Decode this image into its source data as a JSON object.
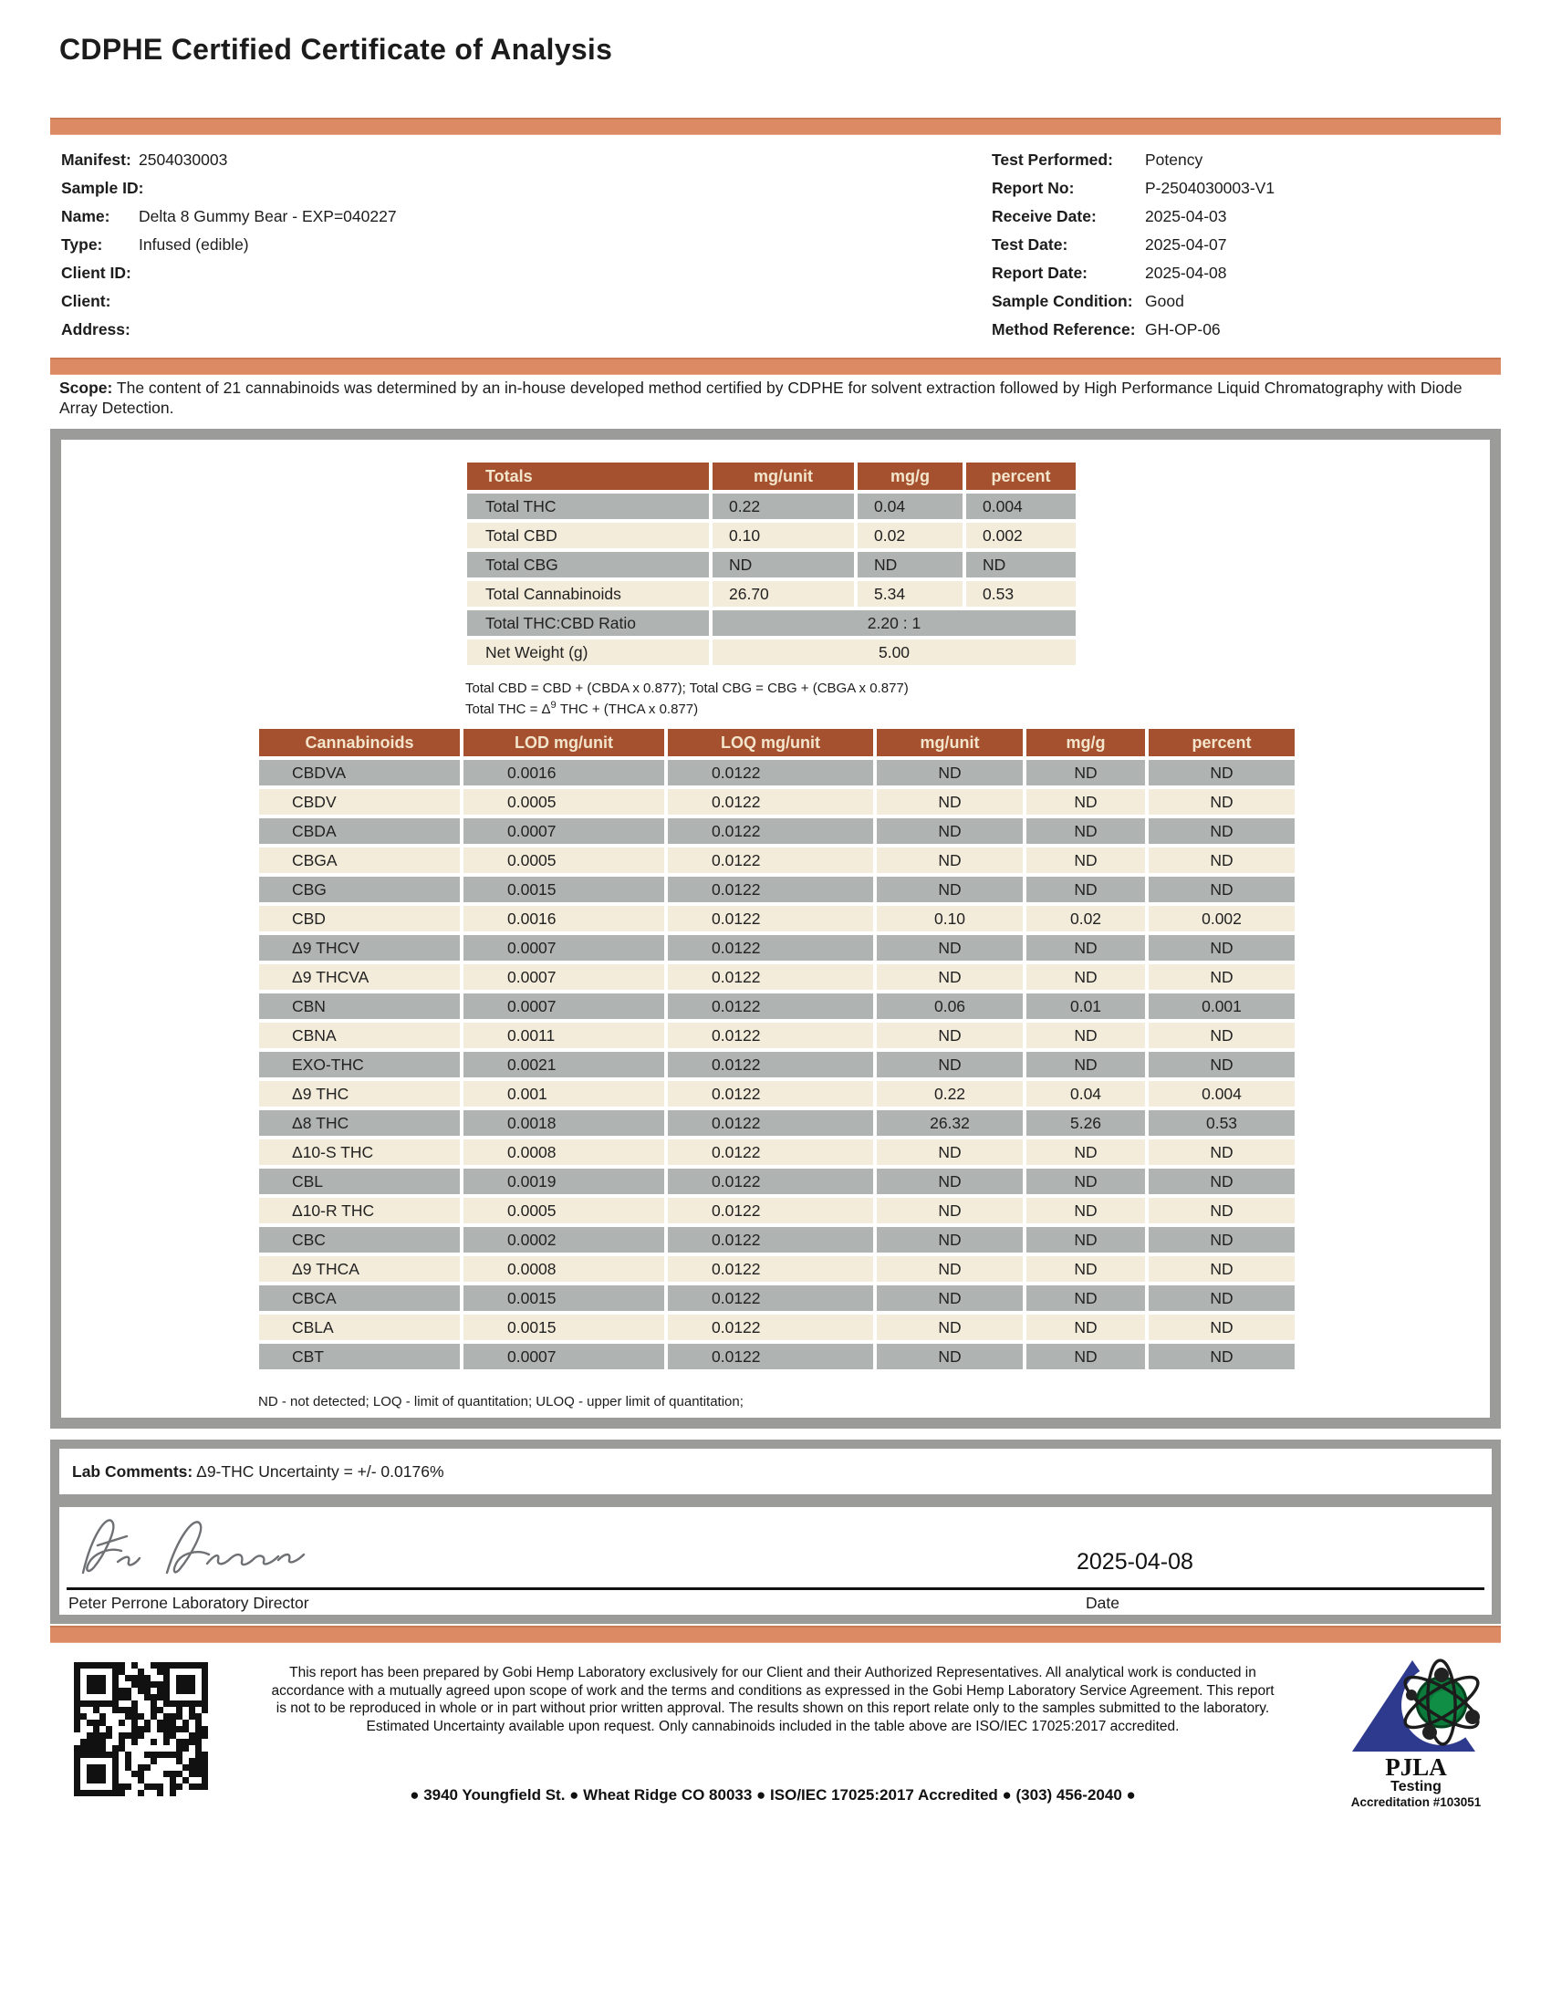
{
  "title": "CDPHE Certified Certificate of Analysis",
  "info_left": {
    "manifest_label": "Manifest:",
    "manifest": "2504030003",
    "sample_id_label": "Sample ID:",
    "sample_id": "",
    "name_label": "Name:",
    "name": "Delta 8 Gummy Bear - EXP=040227",
    "type_label": "Type:",
    "type": "Infused (edible)",
    "client_id_label": "Client ID:",
    "client_id": "",
    "client_label": "Client:",
    "client": "",
    "address_label": "Address:",
    "address": ""
  },
  "info_right": {
    "test_performed_label": "Test Performed:",
    "test_performed": "Potency",
    "report_no_label": "Report No:",
    "report_no": "P-2504030003-V1",
    "receive_date_label": "Receive Date:",
    "receive_date": "2025-04-03",
    "test_date_label": "Test Date:",
    "test_date": "2025-04-07",
    "report_date_label": "Report Date:",
    "report_date": "2025-04-08",
    "sample_condition_label": "Sample Condition:",
    "sample_condition": "Good",
    "method_reference_label": "Method Reference:",
    "method_reference": "GH-OP-06"
  },
  "scope": {
    "label": "Scope:",
    "text": " The content of 21 cannabinoids was determined by an in-house developed method certified by CDPHE for solvent extraction followed by High Performance Liquid Chromatography with Diode Array Detection."
  },
  "totals_table": {
    "headers": [
      "Totals",
      "mg/unit",
      "mg/g",
      "percent"
    ],
    "rows": [
      [
        "Total THC",
        "0.22",
        "0.04",
        "0.004"
      ],
      [
        "Total CBD",
        "0.10",
        "0.02",
        "0.002"
      ],
      [
        "Total CBG",
        "ND",
        "ND",
        "ND"
      ],
      [
        "Total Cannabinoids",
        "26.70",
        "5.34",
        "0.53"
      ]
    ],
    "ratio_label": "Total THC:CBD Ratio",
    "ratio_value": "2.20 : 1",
    "net_weight_label": "Net Weight (g)",
    "net_weight_value": "5.00",
    "footnote1": "Total CBD = CBD + (CBDA x 0.877); Total CBG = CBG + (CBGA x 0.877)",
    "footnote2_pre": "Total THC = Δ",
    "footnote2_sup": "9",
    "footnote2_post": " THC + (THCA x 0.877)"
  },
  "cannabinoid_table": {
    "headers": [
      "Cannabinoids",
      "LOD mg/unit",
      "LOQ mg/unit",
      "mg/unit",
      "mg/g",
      "percent"
    ],
    "rows": [
      [
        "CBDVA",
        "0.0016",
        "0.0122",
        "ND",
        "ND",
        "ND"
      ],
      [
        "CBDV",
        "0.0005",
        "0.0122",
        "ND",
        "ND",
        "ND"
      ],
      [
        "CBDA",
        "0.0007",
        "0.0122",
        "ND",
        "ND",
        "ND"
      ],
      [
        "CBGA",
        "0.0005",
        "0.0122",
        "ND",
        "ND",
        "ND"
      ],
      [
        "CBG",
        "0.0015",
        "0.0122",
        "ND",
        "ND",
        "ND"
      ],
      [
        "CBD",
        "0.0016",
        "0.0122",
        "0.10",
        "0.02",
        "0.002"
      ],
      [
        "Δ9 THCV",
        "0.0007",
        "0.0122",
        "ND",
        "ND",
        "ND"
      ],
      [
        "Δ9 THCVA",
        "0.0007",
        "0.0122",
        "ND",
        "ND",
        "ND"
      ],
      [
        "CBN",
        "0.0007",
        "0.0122",
        "0.06",
        "0.01",
        "0.001"
      ],
      [
        "CBNA",
        "0.0011",
        "0.0122",
        "ND",
        "ND",
        "ND"
      ],
      [
        "EXO-THC",
        "0.0021",
        "0.0122",
        "ND",
        "ND",
        "ND"
      ],
      [
        "Δ9 THC",
        "0.001",
        "0.0122",
        "0.22",
        "0.04",
        "0.004"
      ],
      [
        "Δ8 THC",
        "0.0018",
        "0.0122",
        "26.32",
        "5.26",
        "0.53"
      ],
      [
        "Δ10-S THC",
        "0.0008",
        "0.0122",
        "ND",
        "ND",
        "ND"
      ],
      [
        "CBL",
        "0.0019",
        "0.0122",
        "ND",
        "ND",
        "ND"
      ],
      [
        "Δ10-R THC",
        "0.0005",
        "0.0122",
        "ND",
        "ND",
        "ND"
      ],
      [
        "CBC",
        "0.0002",
        "0.0122",
        "ND",
        "ND",
        "ND"
      ],
      [
        "Δ9 THCA",
        "0.0008",
        "0.0122",
        "ND",
        "ND",
        "ND"
      ],
      [
        "CBCA",
        "0.0015",
        "0.0122",
        "ND",
        "ND",
        "ND"
      ],
      [
        "CBLA",
        "0.0015",
        "0.0122",
        "ND",
        "ND",
        "ND"
      ],
      [
        "CBT",
        "0.0007",
        "0.0122",
        "ND",
        "ND",
        "ND"
      ]
    ],
    "footnote": "ND - not detected; LOQ - limit of quantitation; ULOQ - upper limit of quantitation;"
  },
  "lab_comments": {
    "label": "Lab Comments:",
    "text": " Δ9-THC Uncertainty = +/- 0.0176%"
  },
  "signature": {
    "date": "2025-04-08",
    "signer": "Peter Perrone Laboratory Director",
    "date_label": "Date"
  },
  "footer": {
    "disclaimer": "This report has been prepared by Gobi Hemp Laboratory exclusively for our Client and their Authorized Representatives. All analytical work is conducted in accordance with a mutually agreed upon scope of work and the terms and conditions as expressed in the Gobi Hemp Laboratory Service Agreement. This report is not to be reproduced in whole or in part without prior written approval. The results shown on this report relate only to the samples submitted to the laboratory. Estimated Uncertainty available upon request. Only cannabinoids included in the table above are ISO/IEC 17025:2017 accredited.",
    "address_line": "● 3940 Youngfield St. ● Wheat Ridge CO 80033 ● ISO/IEC 17025:2017 Accredited ● (303) 456-2040 ●"
  },
  "pjla": {
    "name": "PJLA",
    "line1": "Testing",
    "line2": "Accreditation #103051"
  },
  "colors": {
    "accent_bar": "#dc8a64",
    "table_header": "#a5512f",
    "table_header_text": "#f3e5cb",
    "row_gray": "#afb3b1",
    "row_cream": "#f4ecda",
    "frame_gray": "#9b9b99"
  }
}
